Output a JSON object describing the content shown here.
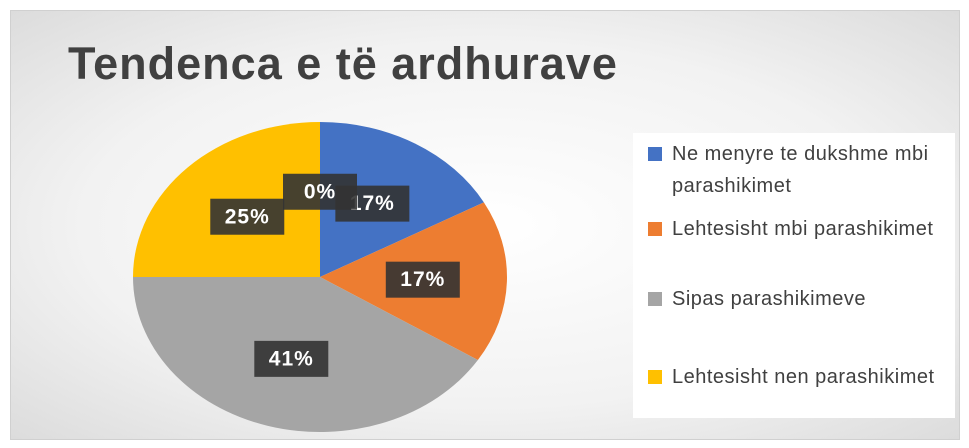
{
  "chart_data": {
    "type": "pie",
    "title": "Tendenca e të ardhurave",
    "categories": [
      "Ne menyre te dukshme mbi parashikimet",
      "Lehtesisht mbi parashikimet",
      "Sipas parashikimeve",
      "Lehtesisht nen parashikimet",
      null
    ],
    "values": [
      17,
      17,
      41,
      25,
      0
    ],
    "value_labels": [
      "17%",
      "17%",
      "41%",
      "25%",
      "0%"
    ],
    "colors": [
      "#4472c4",
      "#ed7d31",
      "#a5a5a5",
      "#ffc000",
      "#5b9bd5"
    ],
    "legend": "right"
  }
}
